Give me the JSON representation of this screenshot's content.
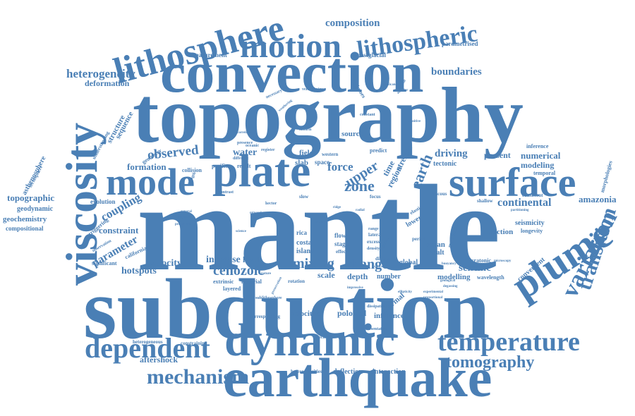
{
  "color": "#4a7fb5",
  "words": [
    {
      "text": "mantle",
      "weight": 100
    },
    {
      "text": "subduction",
      "weight": 90
    },
    {
      "text": "topography",
      "weight": 88
    },
    {
      "text": "convection",
      "weight": 70
    },
    {
      "text": "earthquake",
      "weight": 62
    },
    {
      "text": "dynamic",
      "weight": 60
    },
    {
      "text": "plate",
      "weight": 55
    },
    {
      "text": "viscosity",
      "weight": 52
    },
    {
      "text": "plume",
      "weight": 48
    },
    {
      "text": "surface",
      "weight": 46
    },
    {
      "text": "mode",
      "weight": 44
    },
    {
      "text": "lithosphere",
      "weight": 42
    },
    {
      "text": "motion",
      "weight": 40
    },
    {
      "text": "dependent",
      "weight": 36
    },
    {
      "text": "temperature",
      "weight": 34
    },
    {
      "text": "variation",
      "weight": 32
    },
    {
      "text": "lithospheric",
      "weight": 30
    },
    {
      "text": "transition",
      "weight": 30
    },
    {
      "text": "mechanism",
      "weight": 28
    },
    {
      "text": "tomography",
      "weight": 26
    },
    {
      "text": "heterogeneity",
      "weight": 20
    },
    {
      "text": "composition",
      "weight": 20
    },
    {
      "text": "boundaries",
      "weight": 20
    },
    {
      "text": "observed",
      "weight": 22
    },
    {
      "text": "cenozoic",
      "weight": 22
    },
    {
      "text": "mixing",
      "weight": 22
    },
    {
      "text": "change",
      "weight": 22
    },
    {
      "text": "zone",
      "weight": 22
    },
    {
      "text": "upper",
      "weight": 22
    },
    {
      "text": "earth",
      "weight": 22
    },
    {
      "text": "force",
      "weight": 20
    },
    {
      "text": "continental",
      "weight": 20
    },
    {
      "text": "seismic",
      "weight": 20
    },
    {
      "text": "hotspots",
      "weight": 18
    },
    {
      "text": "velocity",
      "weight": 18
    },
    {
      "text": "increase",
      "weight": 18
    },
    {
      "text": "water",
      "weight": 18
    },
    {
      "text": "driving",
      "weight": 18
    },
    {
      "text": "coupling",
      "weight": 18
    },
    {
      "text": "parameter",
      "weight": 18
    },
    {
      "text": "amazonia",
      "weight": 16
    },
    {
      "text": "numerical",
      "weight": 16
    },
    {
      "text": "modeling",
      "weight": 16
    },
    {
      "text": "formation",
      "weight": 16
    },
    {
      "text": "constraint",
      "weight": 16
    },
    {
      "text": "topographic",
      "weight": 15
    },
    {
      "text": "deformation",
      "weight": 15
    },
    {
      "text": "poloidal",
      "weight": 15
    },
    {
      "text": "aftershock",
      "weight": 14
    },
    {
      "text": "velocities",
      "weight": 14
    },
    {
      "text": "influence",
      "weight": 14
    },
    {
      "text": "interaction",
      "weight": 13
    },
    {
      "text": "deflection",
      "weight": 13
    },
    {
      "text": "geochemistry",
      "weight": 13
    },
    {
      "text": "geodynamic",
      "weight": 12
    },
    {
      "text": "asthenosphere",
      "weight": 12
    },
    {
      "text": "compositional",
      "weight": 11
    },
    {
      "text": "evolution",
      "weight": 12
    },
    {
      "text": "modelling",
      "weight": 13
    },
    {
      "text": "convergent",
      "weight": 13
    },
    {
      "text": "present",
      "weight": 13
    },
    {
      "text": "level",
      "weight": 13
    },
    {
      "text": "scale",
      "weight": 14
    },
    {
      "text": "depth",
      "weight": 14
    },
    {
      "text": "number",
      "weight": 12
    },
    {
      "text": "global",
      "weight": 12
    },
    {
      "text": "traction",
      "weight": 13
    },
    {
      "text": "seismicity",
      "weight": 12
    },
    {
      "text": "structure",
      "weight": 12
    },
    {
      "text": "sequence",
      "weight": 12
    },
    {
      "text": "source",
      "weight": 12
    },
    {
      "text": "region",
      "weight": 13
    },
    {
      "text": "stresses",
      "weight": 13
    },
    {
      "text": "time",
      "weight": 13
    },
    {
      "text": "thermal",
      "weight": 12
    },
    {
      "text": "ocean",
      "weight": 12
    },
    {
      "text": "basalt",
      "weight": 11
    },
    {
      "text": "tectonic",
      "weight": 11
    },
    {
      "text": "field",
      "weight": 12
    },
    {
      "text": "slab",
      "weight": 12
    },
    {
      "text": "costa",
      "weight": 11
    },
    {
      "text": "island",
      "weight": 11
    },
    {
      "text": "lower",
      "weight": 11
    },
    {
      "text": "space",
      "weight": 10
    },
    {
      "text": "measurement",
      "weight": 10
    },
    {
      "text": "postglacial",
      "weight": 10
    },
    {
      "text": "parametrised",
      "weight": 10
    },
    {
      "text": "solimoes",
      "weight": 8
    },
    {
      "text": "california",
      "weight": 10
    },
    {
      "text": "significant",
      "weight": 10
    },
    {
      "text": "triggering",
      "weight": 10
    },
    {
      "text": "morphologies",
      "weight": 9
    },
    {
      "text": "longevity",
      "weight": 9
    },
    {
      "text": "inference",
      "weight": 9
    },
    {
      "text": "temporal",
      "weight": 9
    },
    {
      "text": "wavelength",
      "weight": 9
    },
    {
      "text": "heterogeneous",
      "weight": 9
    },
    {
      "text": "constraining",
      "weight": 9
    },
    {
      "text": "corresponding",
      "weight": 9
    },
    {
      "text": "heterogeneities",
      "weight": 9
    },
    {
      "text": "extrinsic",
      "weight": 9
    },
    {
      "text": "layered",
      "weight": 9
    },
    {
      "text": "material",
      "weight": 9
    },
    {
      "text": "pacific",
      "weight": 9
    },
    {
      "text": "result",
      "weight": 9
    },
    {
      "text": "collision",
      "weight": 9
    },
    {
      "text": "geometry",
      "weight": 9
    },
    {
      "text": "understanding",
      "weight": 8
    },
    {
      "text": "tectosphere",
      "weight": 8
    },
    {
      "text": "cratonic",
      "weight": 8
    },
    {
      "text": "shallow",
      "weight": 8
    },
    {
      "text": "consistent",
      "weight": 8
    },
    {
      "text": "modification",
      "weight": 8
    },
    {
      "text": "predict",
      "weight": 8
    },
    {
      "text": "western",
      "weight": 8
    },
    {
      "text": "flow",
      "weight": 9
    },
    {
      "text": "stage",
      "weight": 9
    },
    {
      "text": "effect",
      "weight": 8
    },
    {
      "text": "excess",
      "weight": 8
    },
    {
      "text": "lateral",
      "weight": 8
    },
    {
      "text": "period",
      "weight": 8
    },
    {
      "text": "distant",
      "weight": 8
    },
    {
      "text": "rotation",
      "weight": 8
    },
    {
      "text": "slow",
      "weight": 8
    },
    {
      "text": "focus",
      "weight": 8
    },
    {
      "text": "viscous",
      "weight": 8
    },
    {
      "text": "rica",
      "weight": 9
    },
    {
      "text": "elastic",
      "weight": 8
    },
    {
      "text": "associated",
      "weight": 7
    },
    {
      "text": "representative",
      "weight": 7
    },
    {
      "text": "dissipation",
      "weight": 7
    },
    {
      "text": "sublithosphere",
      "weight": 7
    },
    {
      "text": "presence",
      "weight": 7
    },
    {
      "text": "several",
      "weight": 7
    },
    {
      "text": "hector",
      "weight": 7
    },
    {
      "text": "necessary",
      "weight": 7
    },
    {
      "text": "velocimetry",
      "weight": 7
    },
    {
      "text": "oceanic",
      "weight": 7
    },
    {
      "text": "register",
      "weight": 7
    },
    {
      "text": "different",
      "weight": 7
    },
    {
      "text": "constant",
      "weight": 7
    },
    {
      "text": "strength",
      "weight": 7
    },
    {
      "text": "contrast",
      "weight": 7
    },
    {
      "text": "observation",
      "weight": 7
    },
    {
      "text": "physical",
      "weight": 6
    },
    {
      "text": "general",
      "weight": 6
    },
    {
      "text": "properties",
      "weight": 6
    },
    {
      "text": "science",
      "weight": 6
    },
    {
      "text": "experimental",
      "weight": 6
    },
    {
      "text": "proportional",
      "weight": 6
    },
    {
      "text": "partitioning",
      "weight": 6
    },
    {
      "text": "geological",
      "weight": 6
    },
    {
      "text": "degassing",
      "weight": 6
    },
    {
      "text": "buoyancy",
      "weight": 6
    },
    {
      "text": "microscopy",
      "weight": 6
    },
    {
      "text": "ellipticity",
      "weight": 6
    },
    {
      "text": "impressive",
      "weight": 6
    },
    {
      "text": "preservation",
      "weight": 6
    },
    {
      "text": "mineral",
      "weight": 6
    },
    {
      "text": "uniform",
      "weight": 6
    },
    {
      "text": "weathering",
      "weight": 6
    },
    {
      "text": "correlation",
      "weight": 6
    },
    {
      "text": "significance",
      "weight": 6
    },
    {
      "text": "agreement",
      "weight": 6
    },
    {
      "text": "interior",
      "weight": 6
    },
    {
      "text": "sensitive",
      "weight": 6
    },
    {
      "text": "range",
      "weight": 7
    },
    {
      "text": "density",
      "weight": 7
    },
    {
      "text": "transfer",
      "weight": 7
    },
    {
      "text": "nature",
      "weight": 6
    },
    {
      "text": "albuar",
      "weight": 6
    },
    {
      "text": "ridge",
      "weight": 6
    },
    {
      "text": "radial",
      "weight": 6
    }
  ]
}
